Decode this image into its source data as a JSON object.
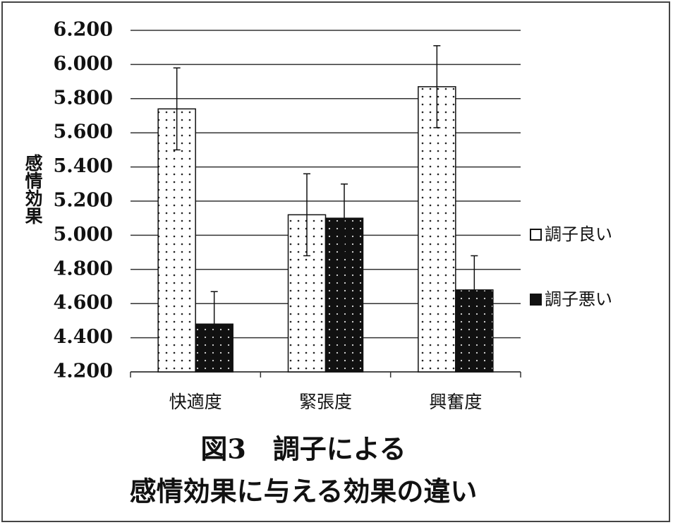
{
  "chart_data": {
    "type": "bar",
    "title": [
      "図3　調子による",
      "感情効果に与える効果の違い"
    ],
    "y_label": "感情効果",
    "categories": [
      "快適度",
      "緊張度",
      "興奮度"
    ],
    "series": [
      {
        "name": "調子良い",
        "color": "#ffffff",
        "values": [
          5.74,
          5.12,
          5.87
        ],
        "errors": [
          0.24,
          0.24,
          0.24
        ]
      },
      {
        "name": "調子悪い",
        "color": "#111111",
        "values": [
          4.48,
          5.1,
          4.68
        ],
        "errors": [
          0.19,
          0.2,
          0.2
        ]
      }
    ],
    "ylim": [
      4.2,
      6.2
    ],
    "yticks": [
      {
        "value": 4.2,
        "label": "4.200"
      },
      {
        "value": 4.4,
        "label": "4.400"
      },
      {
        "value": 4.6,
        "label": "4.600"
      },
      {
        "value": 4.8,
        "label": "4.800"
      },
      {
        "value": 5.0,
        "label": "5.000"
      },
      {
        "value": 5.2,
        "label": "5.200"
      },
      {
        "value": 5.4,
        "label": "5.400"
      },
      {
        "value": 5.6,
        "label": "5.600"
      },
      {
        "value": 5.8,
        "label": "5.800"
      },
      {
        "value": 6.0,
        "label": "6.000"
      },
      {
        "value": 6.2,
        "label": "6.200"
      }
    ],
    "grid": true,
    "legend": "right"
  }
}
